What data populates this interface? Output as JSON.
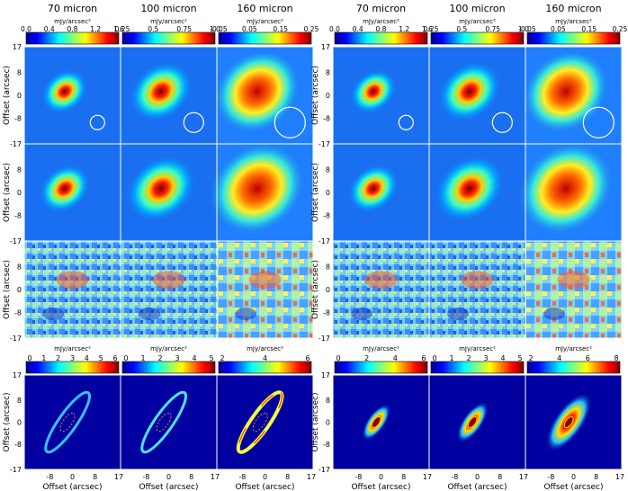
{
  "top_panels": {
    "units": "mJy/arcsec²",
    "columns": [
      "70 micron",
      "100 micron",
      "160 micron"
    ],
    "left_colorbars": [
      [
        "0.0",
        "0.4",
        "0.8",
        "1.2",
        "1.6"
      ],
      [
        "0.25",
        "0.5",
        "0.75",
        "1.0"
      ],
      [
        "-0.05",
        "0.05",
        "0.15",
        "0.25"
      ]
    ],
    "right_colorbars": [
      [
        "0.0",
        "0.4",
        "0.8",
        "1.2",
        "1.6"
      ],
      [
        "0.25",
        "0.5",
        "0.75",
        "1.0"
      ],
      [
        "-0.05",
        "0.05",
        "0.15",
        "0.25"
      ]
    ],
    "y_ticks": [
      "17",
      "8",
      "0",
      "-8",
      "-17"
    ],
    "y_label": "Offset (arcsec)"
  },
  "bottom_panels": {
    "units": "mJy/arcsec²",
    "left_colorbars": [
      [
        "0",
        "1",
        "2",
        "3",
        "4",
        "5",
        "6"
      ],
      [
        "0",
        "1",
        "2",
        "3",
        "4",
        "5"
      ],
      [
        "2",
        "4",
        "6"
      ]
    ],
    "right_colorbars": [
      [
        "0",
        "2",
        "4",
        "6"
      ],
      [
        "0",
        "1",
        "2",
        "3",
        "4",
        "5"
      ],
      [
        "2",
        "4",
        "6",
        "8"
      ]
    ],
    "x_ticks": [
      "-8",
      "0",
      "8",
      "17"
    ],
    "x_label": "Offset (arcsec)",
    "y_ticks": [
      "17",
      "8",
      "0",
      "-8",
      "-17"
    ],
    "y_label": "Offset (arcsec)"
  }
}
